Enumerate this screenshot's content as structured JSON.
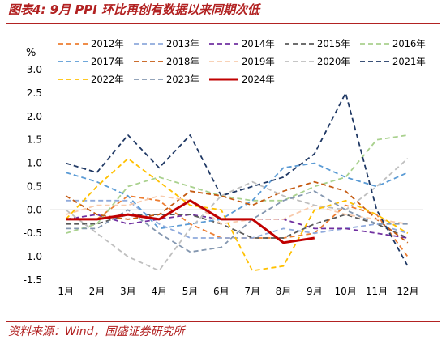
{
  "figure": {
    "title": "图表4:  9月 PPI 环比再创有数据以来同期次低",
    "source": "资料来源：Wind，国盛证券研究所"
  },
  "chart_data": {
    "type": "line",
    "ylabel": "%",
    "ylim": [
      -1.5,
      3.0
    ],
    "yticks": [
      "3.0",
      "2.5",
      "2.0",
      "1.5",
      "1.0",
      "0.5",
      "0.0",
      "-0.5",
      "-1.0",
      "-1.5"
    ],
    "categories": [
      "1月",
      "2月",
      "3月",
      "4月",
      "5月",
      "6月",
      "7月",
      "8月",
      "9月",
      "10月",
      "11月",
      "12月"
    ],
    "legend_position": "top",
    "series": [
      {
        "name": "2012年",
        "color": "#ED7D31",
        "dash": "dash",
        "values": [
          -0.2,
          -0.2,
          0.3,
          0.2,
          -0.3,
          -0.6,
          -0.6,
          -0.6,
          -0.5,
          0.1,
          -0.1,
          -1.0
        ]
      },
      {
        "name": "2013年",
        "color": "#8FAADC",
        "dash": "dash",
        "values": [
          0.2,
          0.2,
          0.2,
          -0.3,
          -0.6,
          -0.6,
          -0.6,
          -0.4,
          -0.5,
          -0.4,
          -0.3,
          -0.5
        ]
      },
      {
        "name": "2014年",
        "color": "#7030A0",
        "dash": "dash",
        "values": [
          -0.2,
          -0.1,
          -0.3,
          -0.2,
          -0.1,
          -0.2,
          -0.2,
          -0.2,
          -0.4,
          -0.4,
          -0.5,
          -0.6
        ]
      },
      {
        "name": "2015年",
        "color": "#595959",
        "dash": "dash",
        "values": [
          -0.3,
          -0.3,
          -0.1,
          -0.1,
          -0.1,
          -0.3,
          -0.6,
          -0.6,
          -0.3,
          -0.1,
          -0.3,
          -0.6
        ]
      },
      {
        "name": "2016年",
        "color": "#A9D18E",
        "dash": "dash",
        "values": [
          -0.5,
          -0.3,
          0.5,
          0.7,
          0.5,
          0.3,
          0.2,
          0.2,
          0.5,
          0.7,
          1.5,
          1.6
        ]
      },
      {
        "name": "2017年",
        "color": "#5B9BD5",
        "dash": "dash",
        "values": [
          0.8,
          0.6,
          0.3,
          -0.4,
          -0.3,
          -0.2,
          0.2,
          0.9,
          1.0,
          0.7,
          0.5,
          0.8
        ]
      },
      {
        "name": "2018年",
        "color": "#C55A11",
        "dash": "dash",
        "values": [
          0.3,
          -0.1,
          -0.2,
          -0.1,
          0.4,
          0.3,
          0.1,
          0.4,
          0.6,
          0.4,
          -0.2,
          -0.7
        ]
      },
      {
        "name": "2019年",
        "color": "#F8CBAD",
        "dash": "dash",
        "values": [
          -0.1,
          0.1,
          0.1,
          0.3,
          0.2,
          -0.3,
          -0.2,
          -0.2,
          0.1,
          -0.1,
          -0.2,
          -0.3
        ]
      },
      {
        "name": "2020年",
        "color": "#BFBFBF",
        "dash": "dash",
        "values": [
          0.0,
          -0.5,
          -1.0,
          -1.3,
          -0.4,
          0.3,
          0.6,
          0.3,
          0.1,
          0.0,
          0.5,
          1.1
        ]
      },
      {
        "name": "2021年",
        "color": "#1F3864",
        "dash": "dash",
        "values": [
          1.0,
          0.8,
          1.6,
          0.9,
          1.6,
          0.3,
          0.5,
          0.7,
          1.2,
          2.5,
          0.0,
          -1.2
        ]
      },
      {
        "name": "2022年",
        "color": "#FFC000",
        "dash": "dash",
        "values": [
          -0.2,
          0.5,
          1.1,
          0.6,
          0.1,
          0.0,
          -1.3,
          -1.2,
          0.0,
          0.2,
          -0.1,
          -0.5
        ]
      },
      {
        "name": "2023年",
        "color": "#8497B0",
        "dash": "dash",
        "values": [
          -0.4,
          -0.4,
          0.0,
          -0.5,
          -0.9,
          -0.8,
          -0.2,
          0.2,
          0.4,
          0.0,
          -0.3,
          -0.3
        ]
      },
      {
        "name": "2024年",
        "color": "#C00000",
        "dash": "solid",
        "values": [
          -0.2,
          -0.2,
          -0.1,
          -0.2,
          0.2,
          -0.2,
          -0.2,
          -0.7,
          -0.6,
          null,
          null,
          null
        ]
      }
    ]
  }
}
